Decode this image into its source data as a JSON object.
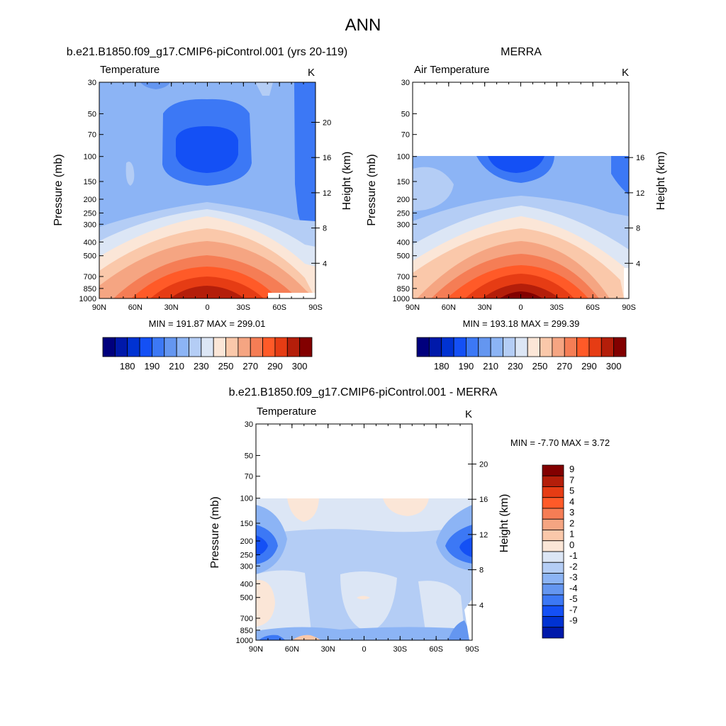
{
  "figure": {
    "title": "ANN",
    "colors_temp": [
      "#00007d",
      "#0019aa",
      "#0032d2",
      "#1450f5",
      "#3c78f5",
      "#6496f0",
      "#8cb4f5",
      "#b4cdf5",
      "#dce6f5",
      "#fbe6d7",
      "#fac8aa",
      "#f5a582",
      "#f57d55",
      "#ff5a28",
      "#e63c14",
      "#b41e0a",
      "#820000"
    ],
    "colors_diff": [
      "#00007d",
      "#0019aa",
      "#0032d2",
      "#1450f5",
      "#3c78f5",
      "#6496f0",
      "#8cb4f5",
      "#b4cdf5",
      "#dce6f5",
      "#fbe6d7",
      "#fac8aa",
      "#f5a582",
      "#f57d55",
      "#ff5a28",
      "#e63c14",
      "#b41e0a",
      "#820000"
    ]
  },
  "panels": [
    {
      "id": "model",
      "title": "b.e21.B1850.f09_g17.CMIP6-piControl.001 (yrs 20-119)",
      "left_label": "Temperature",
      "units": "K",
      "ylabel": "Pressure (mb)",
      "ylabel_right": "Height (km)",
      "stats": "MIN = 191.87  MAX = 299.01"
    },
    {
      "id": "obs",
      "title": "MERRA",
      "left_label": "Air Temperature",
      "units": "K",
      "ylabel": "Pressure (mb)",
      "ylabel_right": "Height (km)",
      "stats": "MIN = 193.18  MAX = 299.39"
    },
    {
      "id": "diff",
      "title": "b.e21.B1850.f09_g17.CMIP6-piControl.001 - MERRA",
      "left_label": "Temperature",
      "units": "K",
      "ylabel": "Pressure (mb)",
      "ylabel_right": "Height (km)",
      "stats": "MIN =  -7.70  MAX =   3.72"
    }
  ],
  "chart_data": [
    {
      "type": "heatmap",
      "panel": "model",
      "title": "b.e21.B1850.f09_g17.CMIP6-piControl.001 (yrs 20-119)",
      "variable": "Temperature",
      "units": "K",
      "x_ticks": [
        "90N",
        "60N",
        "30N",
        "0",
        "30S",
        "60S",
        "90S"
      ],
      "x_values": [
        90,
        60,
        30,
        0,
        -30,
        -60,
        -90
      ],
      "y_ticks": [
        "30",
        "50",
        "70",
        "100",
        "150",
        "200",
        "250",
        "300",
        "400",
        "500",
        "700",
        "850",
        "1000"
      ],
      "y_values": [
        30,
        50,
        70,
        100,
        150,
        200,
        250,
        300,
        400,
        500,
        700,
        850,
        1000
      ],
      "right_ticks": [
        "20",
        "16",
        "12",
        "8",
        "4"
      ],
      "right_values": [
        20,
        16,
        12,
        8,
        4
      ],
      "xlabel": "",
      "ylabel": "Pressure (mb)",
      "ylabel_right": "Height (km)",
      "min": 191.87,
      "max": 299.01,
      "data_top_mb": 30,
      "colorbar": {
        "labels": [
          "180",
          "190",
          "210",
          "230",
          "250",
          "270",
          "290",
          "300"
        ]
      }
    },
    {
      "type": "heatmap",
      "panel": "obs",
      "title": "MERRA",
      "variable": "Air Temperature",
      "units": "K",
      "x_ticks": [
        "90N",
        "60N",
        "30N",
        "0",
        "30S",
        "60S",
        "90S"
      ],
      "x_values": [
        90,
        60,
        30,
        0,
        -30,
        -60,
        -90
      ],
      "y_ticks": [
        "30",
        "50",
        "70",
        "100",
        "150",
        "200",
        "250",
        "300",
        "400",
        "500",
        "700",
        "850",
        "1000"
      ],
      "y_values": [
        30,
        50,
        70,
        100,
        150,
        200,
        250,
        300,
        400,
        500,
        700,
        850,
        1000
      ],
      "right_ticks": [
        "16",
        "12",
        "8",
        "4"
      ],
      "right_values": [
        16,
        12,
        8,
        4
      ],
      "xlabel": "",
      "ylabel": "Pressure (mb)",
      "ylabel_right": "Height (km)",
      "min": 193.18,
      "max": 299.39,
      "data_top_mb": 100,
      "colorbar": {
        "labels": [
          "180",
          "190",
          "210",
          "230",
          "250",
          "270",
          "290",
          "300"
        ]
      }
    },
    {
      "type": "heatmap",
      "panel": "diff",
      "title": "b.e21.B1850.f09_g17.CMIP6-piControl.001 - MERRA",
      "variable": "Temperature",
      "units": "K",
      "x_ticks": [
        "90N",
        "60N",
        "30N",
        "0",
        "30S",
        "60S",
        "90S"
      ],
      "x_values": [
        90,
        60,
        30,
        0,
        -30,
        -60,
        -90
      ],
      "y_ticks": [
        "30",
        "50",
        "70",
        "100",
        "150",
        "200",
        "250",
        "300",
        "400",
        "500",
        "700",
        "850",
        "1000"
      ],
      "y_values": [
        30,
        50,
        70,
        100,
        150,
        200,
        250,
        300,
        400,
        500,
        700,
        850,
        1000
      ],
      "right_ticks": [
        "20",
        "16",
        "12",
        "8",
        "4"
      ],
      "right_values": [
        20,
        16,
        12,
        8,
        4
      ],
      "xlabel": "",
      "ylabel": "Pressure (mb)",
      "ylabel_right": "Height (km)",
      "min": -7.7,
      "max": 3.72,
      "data_top_mb": 100,
      "colorbar": {
        "labels": [
          "9",
          "7",
          "5",
          "4",
          "3",
          "2",
          "1",
          "0",
          "-1",
          "-2",
          "-3",
          "-4",
          "-5",
          "-7",
          "-9"
        ]
      }
    }
  ]
}
